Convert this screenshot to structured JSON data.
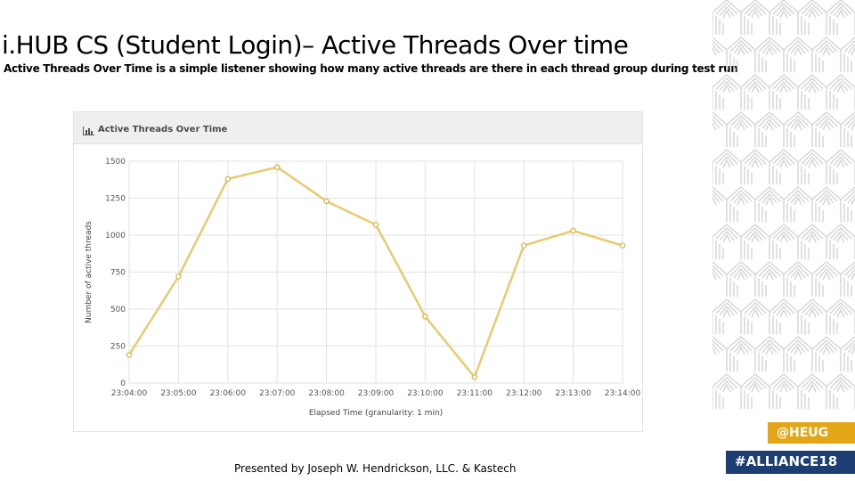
{
  "slide": {
    "title": "i.HUB CS (Student Login)– Active Threads Over time",
    "subtitle": "Active Threads Over Time is a simple listener showing how many active threads are there in each thread group during test run",
    "footer": "Presented by Joseph W. Hendrickson, LLC. & Kastech",
    "tags": {
      "heug": "@HEUG",
      "alliance": "#ALLIANCE18"
    },
    "colors": {
      "heug_bg": "#e2a617",
      "alliance_bg": "#1d3e72",
      "pattern": "#d4d4d4"
    }
  },
  "chart_panel": {
    "header_title": "Active Threads Over Time",
    "header_icon": "bar-chart-icon"
  },
  "chart_data": {
    "type": "line",
    "title": "Active Threads Over Time",
    "xlabel": "Elapsed Time (granularity: 1 min)",
    "ylabel": "Number of active threads",
    "categories": [
      "23:04:00",
      "23:05:00",
      "23:06:00",
      "23:07:00",
      "23:08:00",
      "23:09:00",
      "23:10:00",
      "23:11:00",
      "23:12:00",
      "23:13:00",
      "23:14:00"
    ],
    "series": [
      {
        "name": "",
        "values": [
          190,
          720,
          1380,
          1460,
          1230,
          1070,
          450,
          40,
          930,
          1030,
          930
        ],
        "color": "#e8cb6e"
      }
    ],
    "yticks": [
      "0",
      "250",
      "500",
      "750",
      "1000",
      "1250",
      "1500"
    ],
    "ylim": [
      0,
      1500
    ],
    "grid": true,
    "legend": "none"
  }
}
